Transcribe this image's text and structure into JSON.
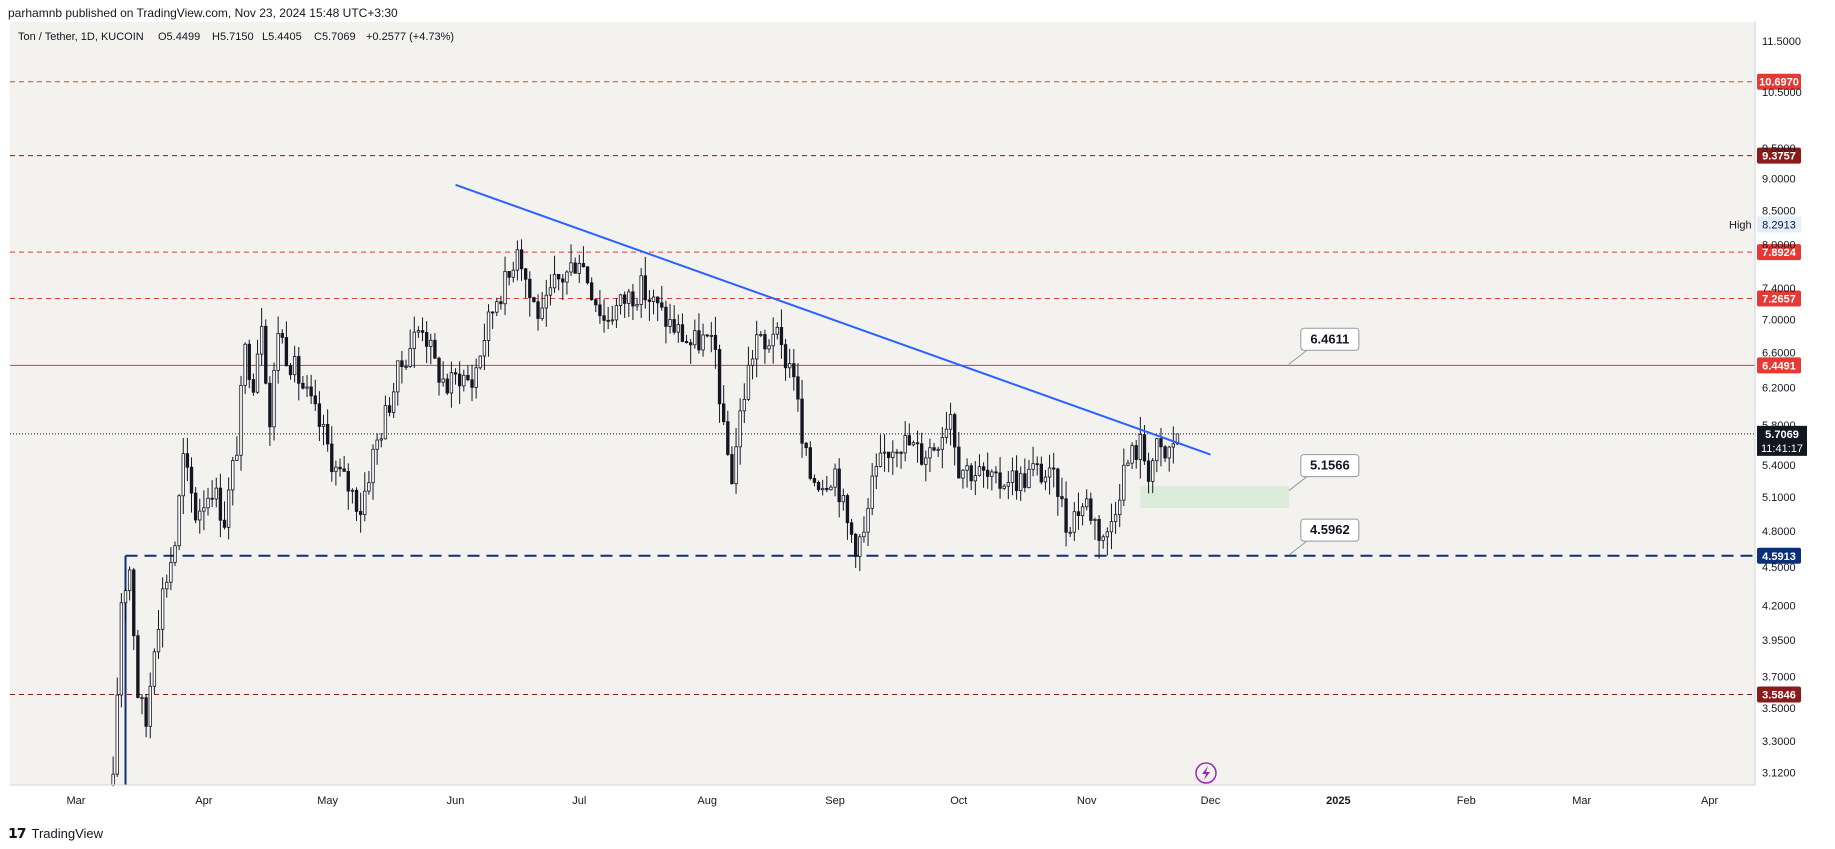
{
  "header": {
    "published_by": "parhamnb published on TradingView.com, Nov 23, 2024 15:48 UTC+3:30"
  },
  "legend": {
    "symbol": "Ton / Tether, 1D, KUCOIN",
    "open": "O5.4499",
    "high": "H5.7150",
    "low": "L5.4405",
    "close": "C5.7069",
    "change": "+0.2577 (+4.73%)"
  },
  "footer": {
    "brand": "TradingView"
  },
  "colors": {
    "up": "#131722",
    "down": "#131722",
    "trendline": "#2962ff",
    "support": "#0d2f7a",
    "red_level": "#d32f2f",
    "dark_red_level": "#8b1a1a",
    "zone": "#c8e6c9"
  },
  "chart_data": {
    "type": "candlestick",
    "symbol": "Ton / Tether",
    "interval": "1D",
    "exchange": "KUCOIN",
    "y_scale": "log",
    "ylim": [
      3.05,
      11.9
    ],
    "x_range": [
      "2024-02-14",
      "2025-04-12"
    ],
    "x_ticks": [
      {
        "date": "2024-03-01",
        "label": "Mar"
      },
      {
        "date": "2024-04-01",
        "label": "Apr"
      },
      {
        "date": "2024-05-01",
        "label": "May"
      },
      {
        "date": "2024-06-01",
        "label": "Jun"
      },
      {
        "date": "2024-07-01",
        "label": "Jul"
      },
      {
        "date": "2024-08-01",
        "label": "Aug"
      },
      {
        "date": "2024-09-01",
        "label": "Sep"
      },
      {
        "date": "2024-10-01",
        "label": "Oct"
      },
      {
        "date": "2024-11-01",
        "label": "Nov"
      },
      {
        "date": "2024-12-01",
        "label": "Dec"
      },
      {
        "date": "2025-01-01",
        "label": "2025"
      },
      {
        "date": "2025-02-01",
        "label": "Feb"
      },
      {
        "date": "2025-03-01",
        "label": "Mar"
      },
      {
        "date": "2025-04-01",
        "label": "Apr"
      }
    ],
    "y_ticks": [
      "11.5000",
      "10.5000",
      "9.5000",
      "9.0000",
      "8.5000",
      "8.0000",
      "7.4000",
      "7.0000",
      "6.6000",
      "6.2000",
      "5.8000",
      "5.4000",
      "5.1000",
      "4.8000",
      "4.5000",
      "4.2000",
      "3.9500",
      "3.7000",
      "3.5000",
      "3.3000",
      "3.1200"
    ],
    "price_path": [
      [
        "2024-03-10",
        3.05
      ],
      [
        "2024-03-12",
        4.25
      ],
      [
        "2024-03-14",
        4.5
      ],
      [
        "2024-03-16",
        3.6
      ],
      [
        "2024-03-18",
        3.4
      ],
      [
        "2024-03-20",
        3.95
      ],
      [
        "2024-03-22",
        4.3
      ],
      [
        "2024-03-25",
        4.7
      ],
      [
        "2024-03-27",
        5.45
      ],
      [
        "2024-03-30",
        4.95
      ],
      [
        "2024-04-03",
        5.2
      ],
      [
        "2024-04-06",
        4.9
      ],
      [
        "2024-04-09",
        5.6
      ],
      [
        "2024-04-11",
        6.6
      ],
      [
        "2024-04-13",
        6.3
      ],
      [
        "2024-04-15",
        7.05
      ],
      [
        "2024-04-17",
        5.8
      ],
      [
        "2024-04-19",
        6.9
      ],
      [
        "2024-04-21",
        6.6
      ],
      [
        "2024-04-24",
        6.3
      ],
      [
        "2024-04-27",
        6.0
      ],
      [
        "2024-04-30",
        5.7
      ],
      [
        "2024-05-03",
        5.35
      ],
      [
        "2024-05-06",
        5.2
      ],
      [
        "2024-05-09",
        5.0
      ],
      [
        "2024-05-12",
        5.5
      ],
      [
        "2024-05-15",
        5.9
      ],
      [
        "2024-05-18",
        6.35
      ],
      [
        "2024-05-21",
        6.7
      ],
      [
        "2024-05-24",
        6.95
      ],
      [
        "2024-05-27",
        6.45
      ],
      [
        "2024-05-30",
        6.2
      ],
      [
        "2024-06-02",
        6.35
      ],
      [
        "2024-06-05",
        6.25
      ],
      [
        "2024-06-08",
        6.8
      ],
      [
        "2024-06-11",
        7.3
      ],
      [
        "2024-06-14",
        7.55
      ],
      [
        "2024-06-16",
        8.05
      ],
      [
        "2024-06-19",
        7.3
      ],
      [
        "2024-06-22",
        7.0
      ],
      [
        "2024-06-25",
        7.45
      ],
      [
        "2024-06-28",
        7.6
      ],
      [
        "2024-07-01",
        7.85
      ],
      [
        "2024-07-04",
        7.4
      ],
      [
        "2024-07-07",
        7.0
      ],
      [
        "2024-07-10",
        7.15
      ],
      [
        "2024-07-13",
        7.3
      ],
      [
        "2024-07-16",
        7.4
      ],
      [
        "2024-07-19",
        7.2
      ],
      [
        "2024-07-22",
        7.0
      ],
      [
        "2024-07-25",
        6.85
      ],
      [
        "2024-07-28",
        6.7
      ],
      [
        "2024-07-31",
        6.75
      ],
      [
        "2024-08-03",
        6.6
      ],
      [
        "2024-08-05",
        5.7
      ],
      [
        "2024-08-07",
        5.3
      ],
      [
        "2024-08-09",
        5.9
      ],
      [
        "2024-08-11",
        6.4
      ],
      [
        "2024-08-13",
        6.8
      ],
      [
        "2024-08-15",
        6.6
      ],
      [
        "2024-08-17",
        6.9
      ],
      [
        "2024-08-19",
        6.6
      ],
      [
        "2024-08-22",
        6.4
      ],
      [
        "2024-08-24",
        5.6
      ],
      [
        "2024-08-26",
        5.3
      ],
      [
        "2024-08-29",
        5.25
      ],
      [
        "2024-09-01",
        5.35
      ],
      [
        "2024-09-04",
        4.85
      ],
      [
        "2024-09-06",
        4.7
      ],
      [
        "2024-09-08",
        4.75
      ],
      [
        "2024-09-10",
        5.2
      ],
      [
        "2024-09-13",
        5.5
      ],
      [
        "2024-09-16",
        5.65
      ],
      [
        "2024-09-19",
        5.6
      ],
      [
        "2024-09-22",
        5.5
      ],
      [
        "2024-09-25",
        5.6
      ],
      [
        "2024-09-27",
        5.75
      ],
      [
        "2024-09-29",
        5.95
      ],
      [
        "2024-10-01",
        5.4
      ],
      [
        "2024-10-04",
        5.35
      ],
      [
        "2024-10-07",
        5.3
      ],
      [
        "2024-10-10",
        5.2
      ],
      [
        "2024-10-13",
        5.3
      ],
      [
        "2024-10-16",
        5.25
      ],
      [
        "2024-10-19",
        5.35
      ],
      [
        "2024-10-22",
        5.3
      ],
      [
        "2024-10-25",
        5.2
      ],
      [
        "2024-10-27",
        4.85
      ],
      [
        "2024-10-30",
        5.0
      ],
      [
        "2024-11-01",
        5.05
      ],
      [
        "2024-11-04",
        4.8
      ],
      [
        "2024-11-06",
        4.75
      ],
      [
        "2024-11-08",
        5.05
      ],
      [
        "2024-11-10",
        5.35
      ],
      [
        "2024-11-12",
        5.5
      ],
      [
        "2024-11-14",
        5.6
      ],
      [
        "2024-11-16",
        5.35
      ],
      [
        "2024-11-18",
        5.55
      ],
      [
        "2024-11-20",
        5.45
      ],
      [
        "2024-11-23",
        5.71
      ]
    ],
    "trendline": {
      "from": [
        "2024-06-01",
        8.9
      ],
      "to": [
        "2024-12-01",
        5.5
      ]
    },
    "levels": [
      {
        "price": 10.697,
        "label": "10.6970",
        "style": "dashed",
        "color": "#e53935"
      },
      {
        "price": 9.3757,
        "label": "9.3757",
        "style": "dashed",
        "color": "#8b1a1a"
      },
      {
        "price": 7.8924,
        "label": "7.8924",
        "style": "dashed",
        "color": "#e53935"
      },
      {
        "price": 7.2657,
        "label": "7.2657",
        "style": "dashed",
        "color": "#e53935"
      },
      {
        "price": 6.4491,
        "label": "6.4491",
        "style": "solid",
        "color": "#e53935"
      },
      {
        "price": 4.5913,
        "label": "4.5913",
        "style": "bold-dashed",
        "color": "#0d2f7a"
      },
      {
        "price": 3.5846,
        "label": "3.5846",
        "style": "dashed",
        "color": "#8b1a1a"
      }
    ],
    "current_price": {
      "price": 5.7069,
      "label": "5.7069",
      "countdown": "11:41:17"
    },
    "high_marker": {
      "label": "High",
      "price": 8.2913,
      "value": "8.2913"
    },
    "callouts": [
      {
        "label": "6.4611",
        "price": 6.4611
      },
      {
        "label": "5.1566",
        "price": 5.1566
      },
      {
        "label": "4.5962",
        "price": 4.5962
      }
    ],
    "zone": {
      "from_date": "2024-11-14",
      "to_date": "2024-12-20",
      "price_top": 5.2,
      "price_bottom": 5.0
    }
  }
}
